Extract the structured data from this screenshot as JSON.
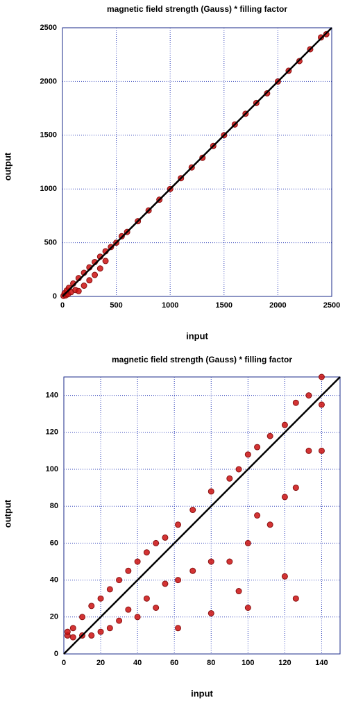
{
  "chart_data": [
    {
      "type": "scatter",
      "title": "magnetic field strength (Gauss) * filling factor",
      "x_label": "input",
      "y_label": "output",
      "color": "#cc1111",
      "x": [
        10,
        20,
        30,
        40,
        50,
        60,
        80,
        100,
        120,
        150,
        150,
        200,
        200,
        250,
        250,
        300,
        300,
        350,
        350,
        400,
        400,
        450,
        500,
        550,
        600,
        700,
        800,
        900,
        1000,
        1100,
        1200,
        1300,
        1400,
        1500,
        1600,
        1700,
        1800,
        1900,
        2000,
        2100,
        2200,
        2300,
        2400,
        2450
      ],
      "values": [
        5,
        30,
        10,
        55,
        20,
        80,
        40,
        120,
        60,
        170,
        50,
        220,
        100,
        270,
        150,
        320,
        200,
        370,
        260,
        420,
        330,
        460,
        500,
        560,
        600,
        700,
        800,
        900,
        1000,
        1100,
        1200,
        1290,
        1400,
        1500,
        1600,
        1700,
        1800,
        1890,
        2000,
        2100,
        2190,
        2300,
        2410,
        2440
      ],
      "reference_line": {
        "x": [
          0,
          2500
        ],
        "values": [
          0,
          2500
        ],
        "color": "#000000"
      },
      "xlim": [
        0,
        2500
      ],
      "ylim": [
        0,
        2500
      ],
      "xticks": [
        0,
        500,
        1000,
        1500,
        2000,
        2500
      ],
      "yticks": [
        0,
        500,
        1000,
        1500,
        2000,
        2500
      ],
      "grid": true
    },
    {
      "type": "scatter",
      "title": "magnetic field strength (Gauss) * filling factor",
      "x_label": "input",
      "y_label": "output",
      "color": "#cc1111",
      "x": [
        2,
        2,
        5,
        5,
        10,
        10,
        15,
        15,
        20,
        20,
        25,
        25,
        30,
        30,
        35,
        35,
        40,
        40,
        45,
        45,
        50,
        50,
        55,
        55,
        62,
        62,
        62,
        70,
        70,
        80,
        80,
        80,
        90,
        90,
        95,
        95,
        100,
        100,
        100,
        105,
        105,
        112,
        112,
        120,
        120,
        120,
        126,
        126,
        126,
        133,
        133,
        140,
        140,
        140
      ],
      "values": [
        10,
        12,
        9,
        14,
        10,
        20,
        10,
        26,
        12,
        30,
        14,
        35,
        18,
        40,
        24,
        45,
        20,
        50,
        30,
        55,
        25,
        60,
        38,
        63,
        14,
        40,
        70,
        45,
        78,
        22,
        50,
        88,
        50,
        95,
        34,
        100,
        25,
        60,
        108,
        75,
        112,
        70,
        118,
        42,
        85,
        124,
        30,
        90,
        136,
        110,
        140,
        110,
        135,
        150
      ],
      "reference_line": {
        "x": [
          0,
          150
        ],
        "values": [
          0,
          150
        ],
        "color": "#000000"
      },
      "xlim": [
        0,
        150
      ],
      "ylim": [
        0,
        150
      ],
      "xticks": [
        0,
        20,
        40,
        60,
        80,
        100,
        120,
        140
      ],
      "yticks": [
        0,
        20,
        40,
        60,
        80,
        100,
        120,
        140
      ],
      "grid": true
    }
  ]
}
